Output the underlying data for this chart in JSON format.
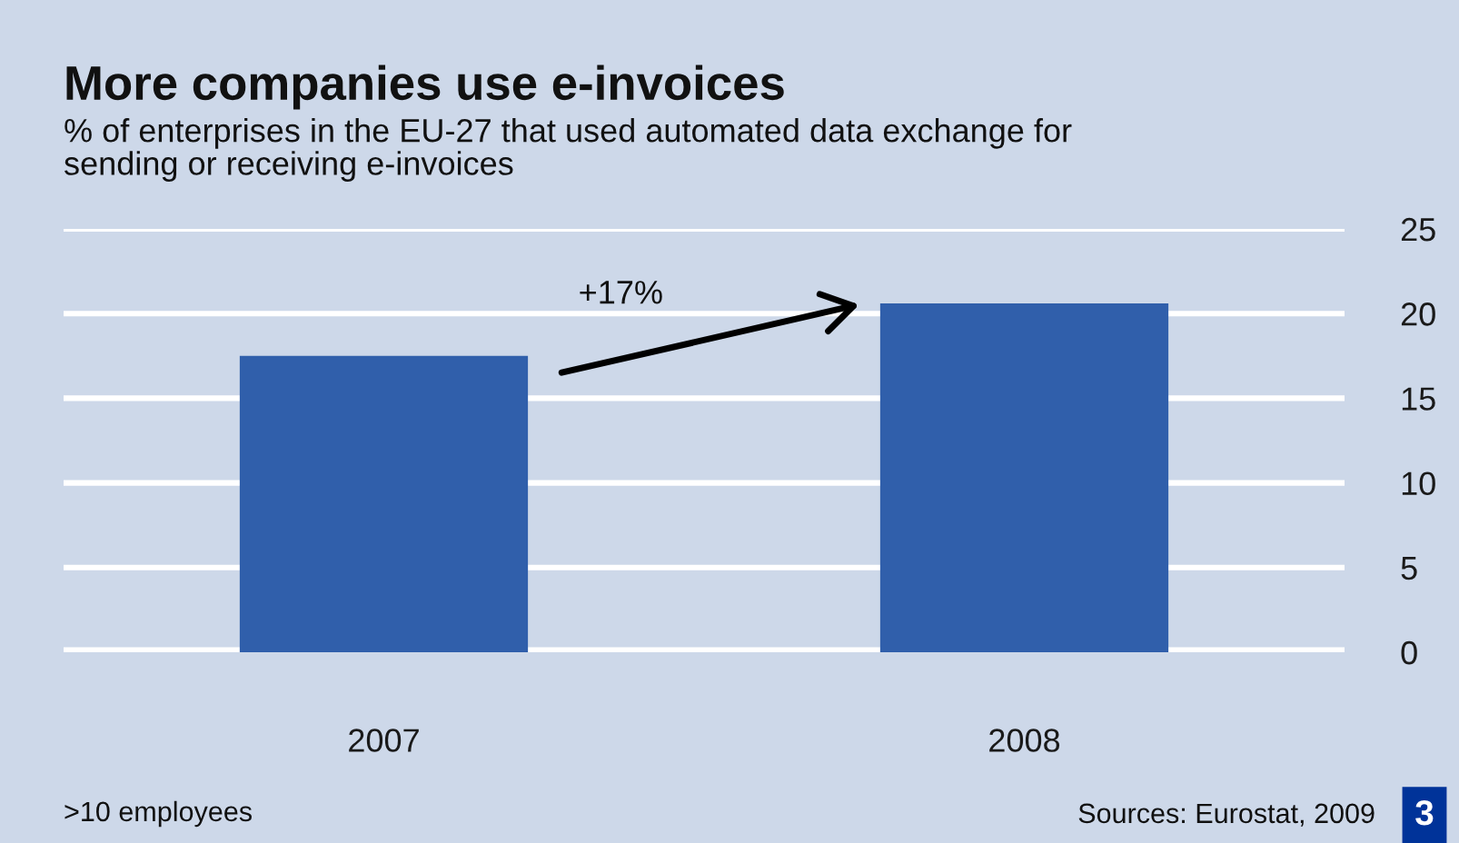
{
  "chart_data": {
    "type": "bar",
    "title": "More companies use e-invoices",
    "subtitle": "% of enterprises in the EU-27 that used automated data exchange for\nsending or receiving e-invoices",
    "categories": [
      "2007",
      "2008"
    ],
    "values": [
      17.5,
      20.6
    ],
    "color": "#305fab",
    "ylim": [
      0,
      25
    ],
    "yticks": [
      0,
      5,
      10,
      15,
      20,
      25
    ],
    "grid": "y",
    "annotations": [
      "+17%",
      ">10 employees",
      "Sources: Eurostat, 2009",
      "3"
    ]
  }
}
